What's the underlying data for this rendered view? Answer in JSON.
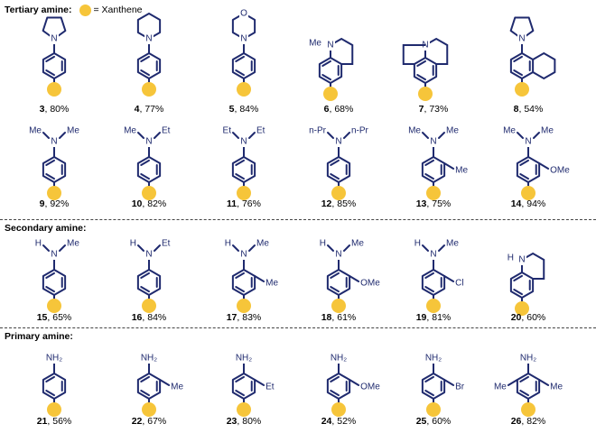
{
  "legend": {
    "tertiary_label": "Tertiary amine:",
    "xanthene_text": "= Xanthene",
    "dot_color": "#F6C53A"
  },
  "secondary_label": "Secondary amine:",
  "primary_label": "Primary  amine:",
  "colors": {
    "bond": "#1F2A6E",
    "xanthene": "#F6C53A"
  },
  "compounds": [
    {
      "num": "3",
      "yield": ", 80%",
      "amine": "N",
      "ring": "pyrrolidine"
    },
    {
      "num": "4",
      "yield": ", 77%",
      "amine": "N",
      "ring": "piperidine"
    },
    {
      "num": "5",
      "yield": ", 84%",
      "amine": "N",
      "ring": "morpholine",
      "hetero": "O"
    },
    {
      "num": "6",
      "yield": ", 68%",
      "amine": "N",
      "sub_left": "Me"
    },
    {
      "num": "7",
      "yield": ", 73%",
      "amine": "N"
    },
    {
      "num": "8",
      "yield": ", 54%",
      "amine": "N",
      "ring": "pyrrolidine"
    },
    {
      "num": "9",
      "yield": ", 92%",
      "amine": "N",
      "sub_left": "Me",
      "sub_right": "Me"
    },
    {
      "num": "10",
      "yield": ", 82%",
      "amine": "N",
      "sub_left": "Me",
      "sub_right": "Et"
    },
    {
      "num": "11",
      "yield": ", 76%",
      "amine": "N",
      "sub_left": "Et",
      "sub_right": "Et"
    },
    {
      "num": "12",
      "yield": ", 85%",
      "amine": "N",
      "sub_left": "n-Pr",
      "sub_right": "n-Pr"
    },
    {
      "num": "13",
      "yield": ", 75%",
      "amine": "N",
      "sub_left": "Me",
      "sub_right": "Me",
      "ring_sub": "Me"
    },
    {
      "num": "14",
      "yield": ", 94%",
      "amine": "N",
      "sub_left": "Me",
      "sub_right": "Me",
      "ring_sub": "OMe"
    },
    {
      "num": "15",
      "yield": ", 65%",
      "amine": "N",
      "sub_left": "H",
      "sub_right": "Me"
    },
    {
      "num": "16",
      "yield": ", 84%",
      "amine": "N",
      "sub_left": "H",
      "sub_right": "Et"
    },
    {
      "num": "17",
      "yield": ", 83%",
      "amine": "N",
      "sub_left": "H",
      "sub_right": "Me",
      "ring_sub": "Me"
    },
    {
      "num": "18",
      "yield": ", 61%",
      "amine": "N",
      "sub_left": "H",
      "sub_right": "Me",
      "ring_sub": "OMe"
    },
    {
      "num": "19",
      "yield": ", 81%",
      "amine": "N",
      "sub_left": "H",
      "sub_right": "Me",
      "ring_sub": "Cl"
    },
    {
      "num": "20",
      "yield": ", 60%",
      "amine": "N",
      "sub_left": "H"
    },
    {
      "num": "21",
      "yield": ", 56%",
      "amine": "NH₂"
    },
    {
      "num": "22",
      "yield": ", 67%",
      "amine": "NH₂",
      "ring_sub": "Me"
    },
    {
      "num": "23",
      "yield": ", 80%",
      "amine": "NH₂",
      "ring_sub": "Et"
    },
    {
      "num": "24",
      "yield": ", 52%",
      "amine": "NH₂",
      "ring_sub": "OMe"
    },
    {
      "num": "25",
      "yield": ", 60%",
      "amine": "NH₂",
      "ring_sub": "Br"
    },
    {
      "num": "26",
      "yield": ", 82%",
      "amine": "NH₂",
      "ring_sub": "Me",
      "ring_sub_left": "Me"
    }
  ]
}
